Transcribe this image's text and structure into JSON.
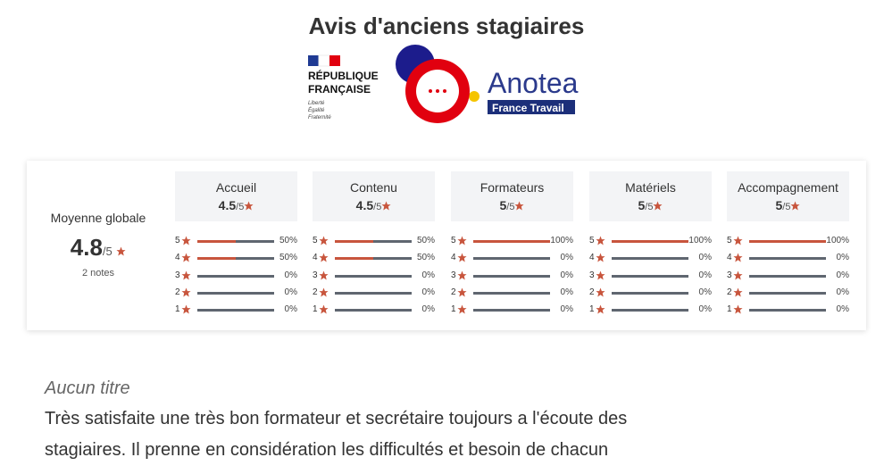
{
  "header": {
    "title": "Avis d'anciens stagiaires",
    "logo": {
      "republique": "RÉPUBLIQUE",
      "francaise": "FRANÇAISE",
      "motto": [
        "Liberté",
        "Égalité",
        "Fraternité"
      ],
      "brand": "Anotea",
      "sub": "France Travail"
    }
  },
  "summary": {
    "label": "Moyenne globale",
    "score": "4.8",
    "scale": "/5",
    "count": "2 notes"
  },
  "criteria": [
    {
      "name": "Accueil",
      "score": "4.5",
      "scale": "/5",
      "rows": [
        {
          "stars": "5",
          "pct": "50%",
          "value": 50
        },
        {
          "stars": "4",
          "pct": "50%",
          "value": 50
        },
        {
          "stars": "3",
          "pct": "0%",
          "value": 0
        },
        {
          "stars": "2",
          "pct": "0%",
          "value": 0
        },
        {
          "stars": "1",
          "pct": "0%",
          "value": 0
        }
      ]
    },
    {
      "name": "Contenu",
      "score": "4.5",
      "scale": "/5",
      "rows": [
        {
          "stars": "5",
          "pct": "50%",
          "value": 50
        },
        {
          "stars": "4",
          "pct": "50%",
          "value": 50
        },
        {
          "stars": "3",
          "pct": "0%",
          "value": 0
        },
        {
          "stars": "2",
          "pct": "0%",
          "value": 0
        },
        {
          "stars": "1",
          "pct": "0%",
          "value": 0
        }
      ]
    },
    {
      "name": "Formateurs",
      "score": "5",
      "scale": "/5",
      "rows": [
        {
          "stars": "5",
          "pct": "100%",
          "value": 100
        },
        {
          "stars": "4",
          "pct": "0%",
          "value": 0
        },
        {
          "stars": "3",
          "pct": "0%",
          "value": 0
        },
        {
          "stars": "2",
          "pct": "0%",
          "value": 0
        },
        {
          "stars": "1",
          "pct": "0%",
          "value": 0
        }
      ]
    },
    {
      "name": "Matériels",
      "score": "5",
      "scale": "/5",
      "rows": [
        {
          "stars": "5",
          "pct": "100%",
          "value": 100
        },
        {
          "stars": "4",
          "pct": "0%",
          "value": 0
        },
        {
          "stars": "3",
          "pct": "0%",
          "value": 0
        },
        {
          "stars": "2",
          "pct": "0%",
          "value": 0
        },
        {
          "stars": "1",
          "pct": "0%",
          "value": 0
        }
      ]
    },
    {
      "name": "Accompagnement",
      "score": "5",
      "scale": "/5",
      "rows": [
        {
          "stars": "5",
          "pct": "100%",
          "value": 100
        },
        {
          "stars": "4",
          "pct": "0%",
          "value": 0
        },
        {
          "stars": "3",
          "pct": "0%",
          "value": 0
        },
        {
          "stars": "2",
          "pct": "0%",
          "value": 0
        },
        {
          "stars": "1",
          "pct": "0%",
          "value": 0
        }
      ]
    }
  ],
  "review": {
    "title": "Aucun titre",
    "lines": [
      "Très satisfaite une très bon formateur et secrétaire toujours a l'écoute des",
      "stagiaires. Il prenne en considération les difficultés et besoin de chacun"
    ]
  }
}
